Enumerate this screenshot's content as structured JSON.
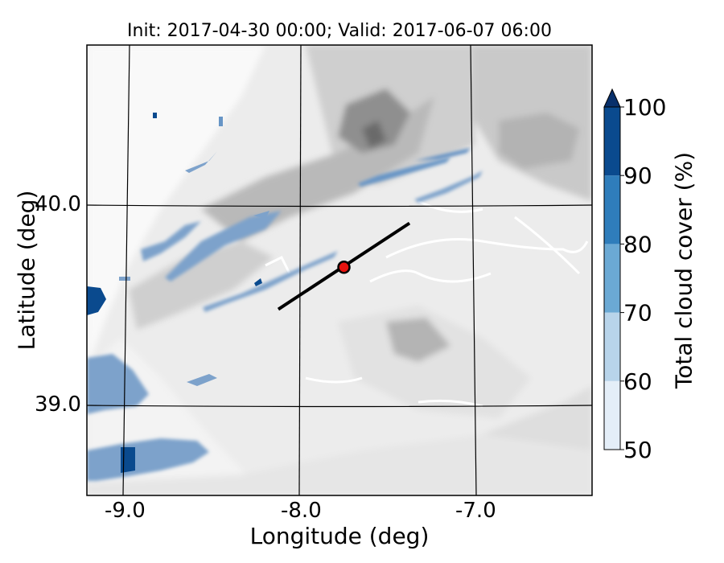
{
  "chart_data": {
    "type": "heatmap",
    "title": "Init: 2017-04-30 00:00; Valid: 2017-06-07 06:00",
    "xlabel": "Longitude (deg)",
    "ylabel": "Latitude (deg)",
    "xlim": [
      -9.2,
      -6.35
    ],
    "ylim": [
      38.55,
      40.8
    ],
    "x_ticks": [
      {
        "value": -9.0,
        "label": "-9.0"
      },
      {
        "value": -8.0,
        "label": "-8.0"
      },
      {
        "value": -7.0,
        "label": "-7.0"
      }
    ],
    "y_ticks": [
      {
        "value": 40.0,
        "label": "40.0"
      },
      {
        "value": 39.0,
        "label": "39.0"
      }
    ],
    "grid": true,
    "colorbar": {
      "label": "Total cloud cover (%)",
      "levels": [
        50,
        60,
        70,
        80,
        90,
        100
      ],
      "tick_labels": [
        "50",
        "60",
        "70",
        "80",
        "90",
        "100"
      ],
      "colors": [
        "#e4eef8",
        "#b8d4ea",
        "#6ba9d4",
        "#2f7dbb",
        "#0a4a8e"
      ],
      "extend": "max",
      "extend_color": "#08306b"
    },
    "transect": {
      "start": [
        -8.12,
        39.48
      ],
      "end": [
        -7.38,
        39.91
      ],
      "color": "#000000"
    },
    "point": {
      "lon": -7.75,
      "lat": 39.69,
      "color": "#e8130f"
    },
    "background": "terrain height shaded in grey contours"
  }
}
